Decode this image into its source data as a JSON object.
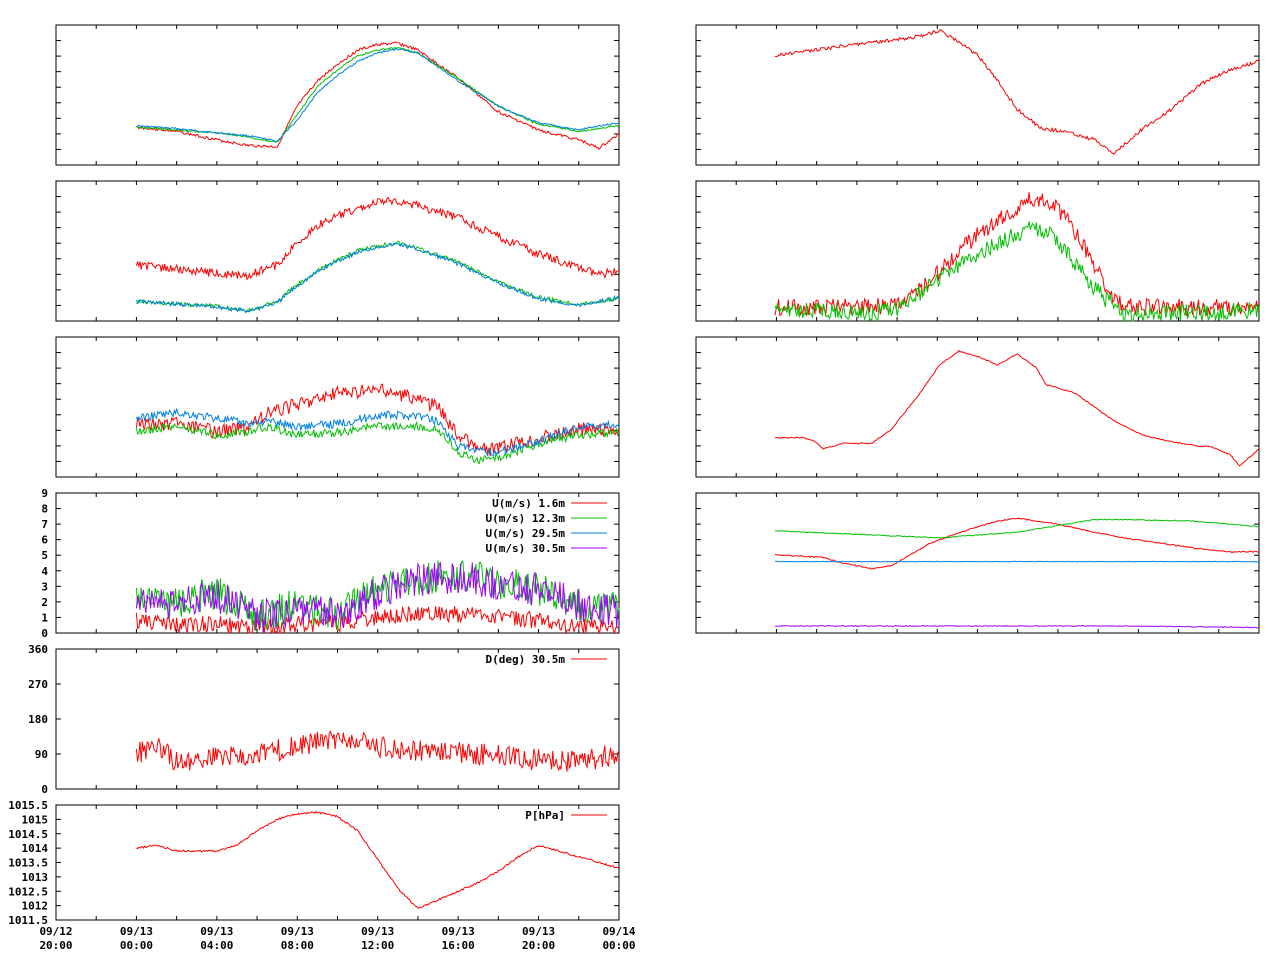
{
  "chart_data": [
    {
      "type": "line",
      "panel": "left-1",
      "x_range": [
        "09/12 20:00",
        "09/14 00:00"
      ],
      "series": [
        {
          "color": "#ff0000",
          "x": [
            "09/13 00:00",
            "09/13 02:00",
            "09/13 04:00",
            "09/13 05:30",
            "09/13 07:00",
            "09/13 08:00",
            "09/13 09:00",
            "09/13 10:00",
            "09/13 11:00",
            "09/13 12:00",
            "09/13 13:00",
            "09/13 14:00",
            "09/13 16:00",
            "09/13 18:00",
            "09/13 20:00",
            "09/13 22:00",
            "09/13 23:00",
            "09/14 00:00"
          ],
          "y": [
            0.27,
            0.24,
            0.18,
            0.14,
            0.13,
            0.42,
            0.6,
            0.72,
            0.82,
            0.86,
            0.87,
            0.82,
            0.62,
            0.38,
            0.25,
            0.18,
            0.12,
            0.22
          ]
        },
        {
          "color": "#00c000",
          "x": [
            "09/13 00:00",
            "09/13 02:00",
            "09/13 04:00",
            "09/13 05:30",
            "09/13 07:00",
            "09/13 08:00",
            "09/13 09:00",
            "09/13 10:00",
            "09/13 11:00",
            "09/13 12:00",
            "09/13 13:00",
            "09/13 14:00",
            "09/13 16:00",
            "09/13 18:00",
            "09/13 20:00",
            "09/13 22:00",
            "09/13 23:00",
            "09/14 00:00"
          ],
          "y": [
            0.27,
            0.25,
            0.23,
            0.2,
            0.16,
            0.36,
            0.56,
            0.68,
            0.78,
            0.82,
            0.84,
            0.8,
            0.62,
            0.42,
            0.29,
            0.24,
            0.26,
            0.28
          ]
        },
        {
          "color": "#0080e0",
          "x": [
            "09/13 00:00",
            "09/13 02:00",
            "09/13 04:00",
            "09/13 05:30",
            "09/13 07:00",
            "09/13 08:00",
            "09/13 09:00",
            "09/13 10:00",
            "09/13 11:00",
            "09/13 12:00",
            "09/13 13:00",
            "09/13 14:00",
            "09/13 16:00",
            "09/13 18:00",
            "09/13 20:00",
            "09/13 22:00",
            "09/13 23:00",
            "09/14 00:00"
          ],
          "y": [
            0.28,
            0.26,
            0.23,
            0.21,
            0.17,
            0.32,
            0.52,
            0.64,
            0.74,
            0.8,
            0.83,
            0.8,
            0.6,
            0.42,
            0.3,
            0.25,
            0.28,
            0.3
          ]
        }
      ]
    },
    {
      "type": "line",
      "panel": "left-2",
      "x_range": [
        "09/12 20:00",
        "09/14 00:00"
      ],
      "series": [
        {
          "color": "#ff0000",
          "x": [
            "09/13 00:00",
            "09/13 02:00",
            "09/13 04:00",
            "09/13 05:30",
            "09/13 07:00",
            "09/13 08:00",
            "09/13 09:00",
            "09/13 10:00",
            "09/13 11:00",
            "09/13 12:00",
            "09/13 13:00",
            "09/13 14:00",
            "09/13 16:00",
            "09/13 18:00",
            "09/13 20:00",
            "09/13 22:00",
            "09/13 23:00",
            "09/14 00:00"
          ],
          "y": [
            0.4,
            0.37,
            0.34,
            0.32,
            0.4,
            0.56,
            0.68,
            0.75,
            0.8,
            0.85,
            0.86,
            0.82,
            0.74,
            0.6,
            0.48,
            0.38,
            0.33,
            0.36
          ]
        },
        {
          "color": "#00c000",
          "x": [
            "09/13 00:00",
            "09/13 02:00",
            "09/13 04:00",
            "09/13 05:30",
            "09/13 07:00",
            "09/13 08:00",
            "09/13 09:00",
            "09/13 10:00",
            "09/13 11:00",
            "09/13 12:00",
            "09/13 13:00",
            "09/13 14:00",
            "09/13 16:00",
            "09/13 18:00",
            "09/13 20:00",
            "09/13 22:00",
            "09/13 23:00",
            "09/14 00:00"
          ],
          "y": [
            0.14,
            0.12,
            0.11,
            0.07,
            0.14,
            0.26,
            0.36,
            0.44,
            0.5,
            0.54,
            0.56,
            0.52,
            0.42,
            0.28,
            0.17,
            0.12,
            0.14,
            0.16
          ]
        },
        {
          "color": "#0080e0",
          "x": [
            "09/13 00:00",
            "09/13 02:00",
            "09/13 04:00",
            "09/13 05:30",
            "09/13 07:00",
            "09/13 08:00",
            "09/13 09:00",
            "09/13 10:00",
            "09/13 11:00",
            "09/13 12:00",
            "09/13 13:00",
            "09/13 14:00",
            "09/13 16:00",
            "09/13 18:00",
            "09/13 20:00",
            "09/13 22:00",
            "09/13 23:00",
            "09/14 00:00"
          ],
          "y": [
            0.14,
            0.12,
            0.1,
            0.07,
            0.13,
            0.25,
            0.35,
            0.43,
            0.49,
            0.53,
            0.55,
            0.51,
            0.41,
            0.27,
            0.16,
            0.11,
            0.14,
            0.17
          ]
        }
      ]
    },
    {
      "type": "line",
      "panel": "left-3",
      "x_range": [
        "09/12 20:00",
        "09/14 00:00"
      ],
      "series": [
        {
          "color": "#ff0000",
          "x": [
            "09/13 00:00",
            "09/13 02:00",
            "09/13 04:00",
            "09/13 05:30",
            "09/13 06:30",
            "09/13 08:00",
            "09/13 10:00",
            "09/13 12:00",
            "09/13 14:00",
            "09/13 15:00",
            "09/13 16:00",
            "09/13 17:00",
            "09/13 18:00",
            "09/13 20:00",
            "09/13 22:00",
            "09/14 00:00"
          ],
          "y": [
            0.38,
            0.38,
            0.32,
            0.36,
            0.45,
            0.52,
            0.6,
            0.62,
            0.56,
            0.5,
            0.3,
            0.2,
            0.2,
            0.28,
            0.34,
            0.34
          ]
        },
        {
          "color": "#00c000",
          "x": [
            "09/13 00:00",
            "09/13 02:00",
            "09/13 04:00",
            "09/13 05:30",
            "09/13 06:30",
            "09/13 08:00",
            "09/13 10:00",
            "09/13 12:00",
            "09/13 14:00",
            "09/13 15:00",
            "09/13 16:00",
            "09/13 17:00",
            "09/13 18:00",
            "09/13 20:00",
            "09/13 22:00",
            "09/14 00:00"
          ],
          "y": [
            0.33,
            0.36,
            0.3,
            0.32,
            0.36,
            0.3,
            0.32,
            0.36,
            0.36,
            0.34,
            0.18,
            0.12,
            0.14,
            0.24,
            0.3,
            0.32
          ]
        },
        {
          "color": "#0080e0",
          "x": [
            "09/13 00:00",
            "09/13 02:00",
            "09/13 04:00",
            "09/13 05:30",
            "09/13 06:30",
            "09/13 08:00",
            "09/13 10:00",
            "09/13 12:00",
            "09/13 14:00",
            "09/13 15:00",
            "09/13 16:00",
            "09/13 17:00",
            "09/13 18:00",
            "09/13 20:00",
            "09/13 22:00",
            "09/14 00:00"
          ],
          "y": [
            0.42,
            0.46,
            0.42,
            0.38,
            0.4,
            0.36,
            0.38,
            0.44,
            0.44,
            0.4,
            0.22,
            0.18,
            0.18,
            0.26,
            0.36,
            0.38
          ]
        }
      ]
    },
    {
      "type": "line",
      "panel": "left-4",
      "ylim": [
        0,
        9
      ],
      "yticks": [
        "0",
        "1",
        "2",
        "3",
        "4",
        "5",
        "6",
        "7",
        "8",
        "9"
      ],
      "x_range": [
        "09/12 20:00",
        "09/14 00:00"
      ],
      "legend": [
        "U(m/s)  1.6m",
        "U(m/s) 12.3m",
        "U(m/s) 29.5m",
        "U(m/s) 30.5m"
      ],
      "legend_placement": "top-right",
      "series": [
        {
          "name": "U(m/s)  1.6m",
          "color": "#ff0000",
          "x": [
            "09/13 00:00",
            "09/13 02:00",
            "09/13 04:00",
            "09/13 06:00",
            "09/13 08:00",
            "09/13 10:00",
            "09/13 12:00",
            "09/13 14:00",
            "09/13 16:00",
            "09/13 18:00",
            "09/13 20:00",
            "09/13 22:00",
            "09/14 00:00"
          ],
          "y": [
            0.8,
            0.5,
            0.6,
            0.3,
            0.6,
            0.6,
            1.0,
            1.3,
            1.2,
            1.0,
            0.8,
            0.4,
            0.3
          ]
        },
        {
          "name": "U(m/s) 12.3m",
          "color": "#00c000",
          "x": [
            "09/13 00:00",
            "09/13 02:00",
            "09/13 04:00",
            "09/13 06:00",
            "09/13 08:00",
            "09/13 10:00",
            "09/13 12:00",
            "09/13 14:00",
            "09/13 16:00",
            "09/13 18:00",
            "09/13 20:00",
            "09/13 22:00",
            "09/14 00:00"
          ],
          "y": [
            2.5,
            2.0,
            2.6,
            1.0,
            1.8,
            1.2,
            2.8,
            3.5,
            3.8,
            3.2,
            2.8,
            1.8,
            1.6
          ]
        },
        {
          "name": "U(m/s) 29.5m",
          "color": "#0080e0",
          "x": [
            "09/13 00:00",
            "09/14 00:00"
          ],
          "y": [
            null,
            null
          ]
        },
        {
          "name": "U(m/s) 30.5m",
          "color": "#a000ff",
          "x": [
            "09/13 00:00",
            "09/13 02:00",
            "09/13 04:00",
            "09/13 06:00",
            "09/13 08:00",
            "09/13 10:00",
            "09/13 12:00",
            "09/13 14:00",
            "09/13 16:00",
            "09/13 18:00",
            "09/13 20:00",
            "09/13 22:00",
            "09/14 00:00"
          ],
          "y": [
            2.4,
            1.8,
            2.4,
            1.0,
            1.6,
            1.2,
            2.6,
            3.4,
            3.6,
            3.2,
            2.8,
            1.8,
            1.4
          ]
        }
      ]
    },
    {
      "type": "line",
      "panel": "left-5",
      "ylim": [
        0,
        360
      ],
      "yticks": [
        "0",
        "90",
        "180",
        "270",
        "360"
      ],
      "x_range": [
        "09/12 20:00",
        "09/14 00:00"
      ],
      "legend": [
        "D(deg)  30.5m"
      ],
      "legend_placement": "top-right",
      "series": [
        {
          "name": "D(deg)  30.5m",
          "color": "#ff0000",
          "x": [
            "09/13 00:00",
            "09/13 01:00",
            "09/13 02:00",
            "09/13 04:00",
            "09/13 06:00",
            "09/13 08:00",
            "09/13 10:00",
            "09/13 12:00",
            "09/13 14:00",
            "09/13 16:00",
            "09/13 18:00",
            "09/13 20:00",
            "09/13 22:00",
            "09/14 00:00"
          ],
          "y": [
            90,
            120,
            70,
            80,
            90,
            110,
            130,
            110,
            100,
            95,
            85,
            75,
            70,
            90
          ]
        }
      ]
    },
    {
      "type": "line",
      "panel": "left-6",
      "ylim": [
        1011.5,
        1015.5
      ],
      "yticks": [
        "1011.5",
        "1012",
        "1012.5",
        "1013",
        "1013.5",
        "1014",
        "1014.5",
        "1015",
        "1015.5"
      ],
      "x_range": [
        "09/12 20:00",
        "09/14 00:00"
      ],
      "xticks": [
        "09/12\n20:00",
        "09/13\n00:00",
        "09/13\n04:00",
        "09/13\n08:00",
        "09/13\n12:00",
        "09/13\n16:00",
        "09/13\n20:00",
        "09/14\n00:00"
      ],
      "legend": [
        "P[hPa]"
      ],
      "legend_placement": "top-right",
      "series": [
        {
          "name": "P[hPa]",
          "color": "#ff0000",
          "x": [
            "09/13 00:00",
            "09/13 01:00",
            "09/13 02:00",
            "09/13 04:00",
            "09/13 05:00",
            "09/13 06:00",
            "09/13 07:00",
            "09/13 08:00",
            "09/13 09:00",
            "09/13 10:00",
            "09/13 11:00",
            "09/13 12:00",
            "09/13 13:00",
            "09/13 14:00",
            "09/13 15:00",
            "09/13 16:00",
            "09/13 17:00",
            "09/13 18:00",
            "09/13 19:00",
            "09/13 20:00",
            "09/13 21:00",
            "09/13 22:00",
            "09/13 23:00",
            "09/14 00:00"
          ],
          "y": [
            1014.0,
            1014.1,
            1013.9,
            1013.9,
            1014.1,
            1014.6,
            1015.0,
            1015.2,
            1015.25,
            1015.1,
            1014.6,
            1013.6,
            1012.6,
            1011.9,
            1012.2,
            1012.5,
            1012.8,
            1013.2,
            1013.7,
            1014.1,
            1013.9,
            1013.7,
            1013.5,
            1013.3
          ]
        }
      ]
    },
    {
      "type": "line",
      "panel": "right-1",
      "series": [
        {
          "color": "#ff0000",
          "x": [
            0.0,
            0.08,
            0.16,
            0.24,
            0.3,
            0.34,
            0.38,
            0.42,
            0.46,
            0.5,
            0.55,
            0.6,
            0.64,
            0.66,
            0.7,
            0.76,
            0.82,
            0.88,
            0.94,
            1.0
          ],
          "y": [
            0.78,
            0.82,
            0.86,
            0.89,
            0.92,
            0.96,
            0.88,
            0.78,
            0.6,
            0.4,
            0.26,
            0.24,
            0.2,
            0.18,
            0.08,
            0.26,
            0.4,
            0.58,
            0.68,
            0.74
          ]
        }
      ]
    },
    {
      "type": "line",
      "panel": "right-2",
      "series": [
        {
          "color": "#ff0000",
          "x": [
            0.0,
            0.1,
            0.2,
            0.26,
            0.3,
            0.34,
            0.38,
            0.42,
            0.46,
            0.5,
            0.52,
            0.56,
            0.6,
            0.64,
            0.68,
            0.72,
            0.76,
            0.88,
            1.0
          ],
          "y": [
            0.1,
            0.1,
            0.1,
            0.12,
            0.22,
            0.35,
            0.5,
            0.62,
            0.72,
            0.8,
            0.86,
            0.88,
            0.74,
            0.52,
            0.26,
            0.1,
            0.1,
            0.1,
            0.1
          ]
        },
        {
          "color": "#00c000",
          "x": [
            0.0,
            0.1,
            0.2,
            0.26,
            0.3,
            0.34,
            0.38,
            0.42,
            0.46,
            0.5,
            0.52,
            0.56,
            0.6,
            0.64,
            0.68,
            0.72,
            0.76,
            0.88,
            1.0
          ],
          "y": [
            0.08,
            0.08,
            0.06,
            0.1,
            0.2,
            0.3,
            0.4,
            0.48,
            0.56,
            0.62,
            0.66,
            0.64,
            0.5,
            0.32,
            0.16,
            0.06,
            0.05,
            0.06,
            0.08
          ]
        }
      ]
    },
    {
      "type": "line",
      "panel": "right-3",
      "series": [
        {
          "color": "#ff0000",
          "x": [
            0.0,
            0.06,
            0.08,
            0.1,
            0.14,
            0.2,
            0.24,
            0.3,
            0.34,
            0.38,
            0.42,
            0.46,
            0.5,
            0.54,
            0.56,
            0.62,
            0.66,
            0.7,
            0.76,
            0.82,
            0.88,
            0.9,
            0.94,
            0.96,
            1.0
          ],
          "y": [
            0.28,
            0.28,
            0.26,
            0.2,
            0.24,
            0.24,
            0.34,
            0.6,
            0.8,
            0.9,
            0.86,
            0.8,
            0.88,
            0.78,
            0.66,
            0.6,
            0.5,
            0.4,
            0.3,
            0.25,
            0.22,
            0.22,
            0.16,
            0.08,
            0.2
          ]
        }
      ]
    },
    {
      "type": "line",
      "panel": "right-4",
      "series": [
        {
          "color": "#ff0000",
          "x": [
            0.0,
            0.1,
            0.14,
            0.2,
            0.24,
            0.32,
            0.4,
            0.46,
            0.5,
            0.54,
            0.58,
            0.66,
            0.72,
            0.8,
            0.88,
            0.94,
            1.0
          ],
          "y": [
            0.56,
            0.54,
            0.5,
            0.46,
            0.48,
            0.64,
            0.74,
            0.8,
            0.82,
            0.8,
            0.78,
            0.72,
            0.68,
            0.64,
            0.6,
            0.58,
            0.58
          ]
        },
        {
          "color": "#00c000",
          "x": [
            0.0,
            0.2,
            0.34,
            0.5,
            0.66,
            0.72,
            0.86,
            1.0
          ],
          "y": [
            0.73,
            0.7,
            0.68,
            0.72,
            0.81,
            0.81,
            0.8,
            0.76
          ]
        },
        {
          "color": "#0080e0",
          "x": [
            0.0,
            1.0
          ],
          "y": [
            0.51,
            0.51
          ]
        },
        {
          "color": "#a000ff",
          "x": [
            0.0,
            0.4,
            0.7,
            1.0
          ],
          "y": [
            0.05,
            0.05,
            0.05,
            0.04
          ]
        }
      ]
    }
  ]
}
